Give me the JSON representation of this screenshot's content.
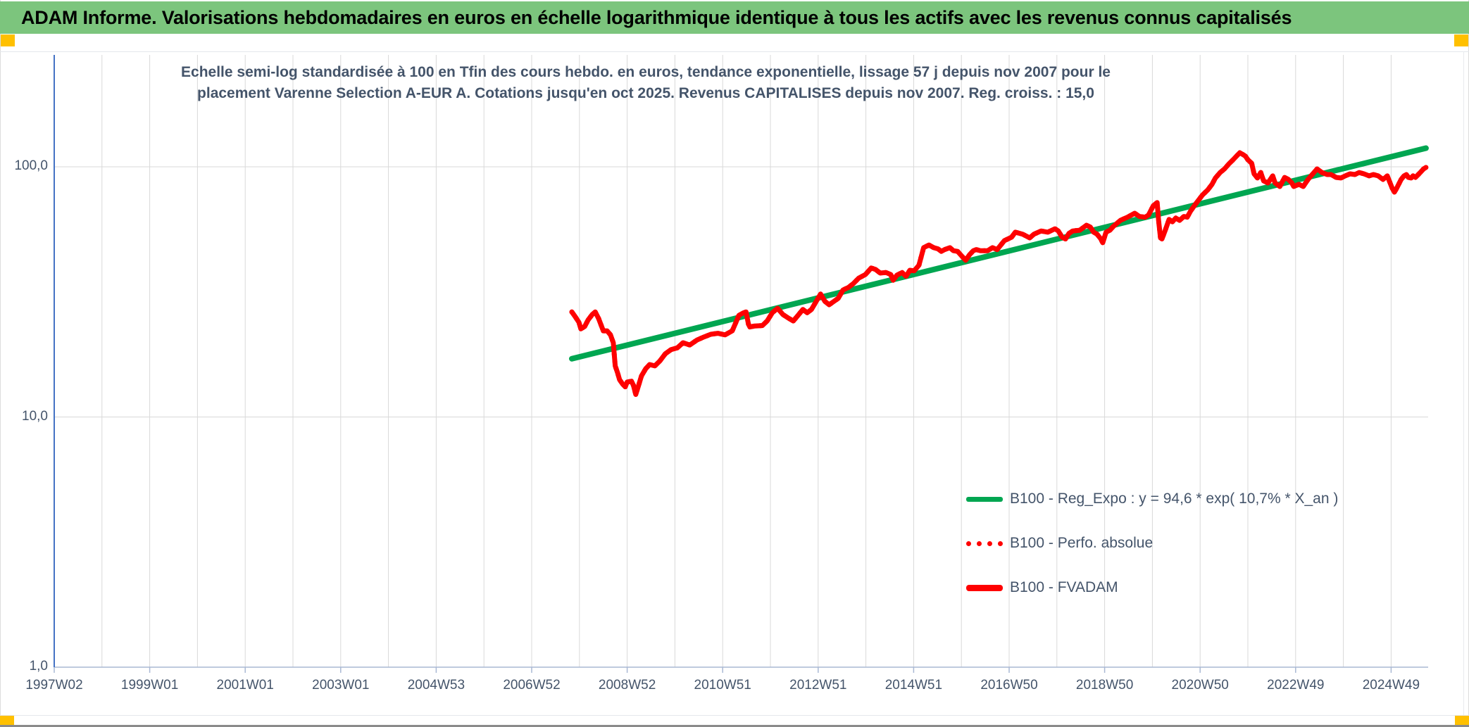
{
  "header": {
    "title": "ADAM Informe. Valorisations hebdomadaires en euros en échelle logarithmique identique à tous les actifs avec les revenus connus capitalisés",
    "bg_color": "#7cc57d",
    "accent_color": "#ffc000"
  },
  "chart": {
    "subtitle_line1": "Echelle semi-log standardisée à 100 en Tfin des cours hebdo. en euros, tendance exponentielle, lissage 57 j depuis nov 2007 pour le",
    "subtitle_line2": "placement Varenne Selection A-EUR A. Cotations jusqu'en oct 2025. Revenus CAPITALISES depuis nov 2007. Reg. croiss. : 15,0",
    "colors": {
      "gridline": "#d9d9d9",
      "y_axis": "#4472c4",
      "axis_baseline": "#a9b8d4",
      "trend_green": "#00a651",
      "series_red": "#fe0000",
      "text": "#44546A"
    },
    "y_axis": {
      "labels": [
        {
          "text": "100,0",
          "value": 100
        },
        {
          "text": "10,0",
          "value": 10
        },
        {
          "text": "1,0",
          "value": 1
        }
      ]
    },
    "x_axis": {
      "labels": [
        {
          "text": "1997W02",
          "year": 1997.03
        },
        {
          "text": "1999W01",
          "year": 1999.03
        },
        {
          "text": "2001W01",
          "year": 2001.03
        },
        {
          "text": "2003W01",
          "year": 2003.03
        },
        {
          "text": "2004W53",
          "year": 2005.03
        },
        {
          "text": "2006W52",
          "year": 2007.03
        },
        {
          "text": "2008W52",
          "year": 2009.03
        },
        {
          "text": "2010W51",
          "year": 2011.03
        },
        {
          "text": "2012W51",
          "year": 2013.03
        },
        {
          "text": "2014W51",
          "year": 2015.03
        },
        {
          "text": "2016W50",
          "year": 2017.03
        },
        {
          "text": "2018W50",
          "year": 2019.03
        },
        {
          "text": "2020W50",
          "year": 2021.03
        },
        {
          "text": "2022W49",
          "year": 2023.03
        },
        {
          "text": "2024W49",
          "year": 2025.03
        }
      ]
    },
    "legend": [
      {
        "label": "B100 - Reg_Expo : y = 94,6 * exp( 10,7% *  X_an )",
        "color": "#00a651",
        "style": "solid"
      },
      {
        "label": "B100 - Perfo. absolue",
        "color": "#fe0000",
        "style": "dotted"
      },
      {
        "label": "B100 - FVADAM",
        "color": "#fe0000",
        "style": "thick"
      }
    ]
  },
  "chart_data": {
    "type": "line",
    "title": "Echelle semi-log standardisée à 100 en Tfin des cours hebdo. en euros, tendance exponentielle, lissage 57 j depuis nov 2007 pour le placement Varenne Selection A-EUR A. Cotations jusqu'en oct 2025. Revenus CAPITALISES depuis nov 2007. Reg. croiss. : 15,0",
    "y_scale": "log",
    "ylim": [
      1,
      246
    ],
    "xlim_years": [
      1997.03,
      2025.8
    ],
    "x_unit": "ISO week (yearWweek), one gridline per year, labels every 104 weeks",
    "y_tick_labels": [
      "100,0",
      "10,0",
      "1,0"
    ],
    "x_tick_labels": [
      "1997W02",
      "1999W01",
      "2001W01",
      "2003W01",
      "2004W53",
      "2006W52",
      "2008W52",
      "2010W51",
      "2012W51",
      "2014W51",
      "2016W50",
      "2018W50",
      "2020W50",
      "2022W49",
      "2024W49"
    ],
    "grid": true,
    "legend_position": "inside lower right",
    "series": [
      {
        "name": "B100 - Reg_Expo : y = 94,6 * exp( 10,7% *  X_an )",
        "color": "#00a651",
        "style": "solid",
        "width": 8,
        "points": [
          [
            2007.87,
            17.1
          ],
          [
            2025.76,
            118.7
          ]
        ]
      },
      {
        "name": "B100 - Perfo. absolue",
        "color": "#fe0000",
        "style": "dotted",
        "width": 7,
        "points_same_as": "B100 - FVADAM",
        "note": "coincident with B100 - FVADAM, hidden beneath the solid red line"
      },
      {
        "name": "B100 - FVADAM",
        "color": "#fe0000",
        "style": "solid",
        "width": 7,
        "points": [
          [
            2007.87,
            26.3
          ],
          [
            2007.94,
            25.2
          ],
          [
            2008.02,
            23.9
          ],
          [
            2008.06,
            22.5
          ],
          [
            2008.14,
            23.0
          ],
          [
            2008.21,
            24.4
          ],
          [
            2008.3,
            25.7
          ],
          [
            2008.36,
            26.3
          ],
          [
            2008.43,
            24.8
          ],
          [
            2008.53,
            22.1
          ],
          [
            2008.61,
            22.1
          ],
          [
            2008.68,
            21.3
          ],
          [
            2008.74,
            19.8
          ],
          [
            2008.78,
            16.0
          ],
          [
            2008.83,
            15.0
          ],
          [
            2008.87,
            14.1
          ],
          [
            2008.94,
            13.5
          ],
          [
            2008.99,
            13.2
          ],
          [
            2009.03,
            13.8
          ],
          [
            2009.12,
            13.9
          ],
          [
            2009.16,
            13.4
          ],
          [
            2009.21,
            12.3
          ],
          [
            2009.27,
            13.4
          ],
          [
            2009.33,
            14.6
          ],
          [
            2009.42,
            15.6
          ],
          [
            2009.5,
            16.2
          ],
          [
            2009.61,
            16.0
          ],
          [
            2009.71,
            16.7
          ],
          [
            2009.83,
            17.9
          ],
          [
            2009.95,
            18.6
          ],
          [
            2010.08,
            18.9
          ],
          [
            2010.2,
            19.8
          ],
          [
            2010.34,
            19.4
          ],
          [
            2010.49,
            20.3
          ],
          [
            2010.64,
            20.9
          ],
          [
            2010.78,
            21.4
          ],
          [
            2010.93,
            21.6
          ],
          [
            2011.08,
            21.3
          ],
          [
            2011.23,
            22.1
          ],
          [
            2011.37,
            25.5
          ],
          [
            2011.45,
            26.0
          ],
          [
            2011.52,
            26.3
          ],
          [
            2011.57,
            23.5
          ],
          [
            2011.6,
            22.9
          ],
          [
            2011.7,
            23.1
          ],
          [
            2011.86,
            23.2
          ],
          [
            2011.96,
            24.2
          ],
          [
            2012.07,
            26.1
          ],
          [
            2012.18,
            27.2
          ],
          [
            2012.29,
            25.7
          ],
          [
            2012.4,
            24.9
          ],
          [
            2012.51,
            24.2
          ],
          [
            2012.61,
            25.5
          ],
          [
            2012.71,
            26.9
          ],
          [
            2012.8,
            26.1
          ],
          [
            2012.89,
            26.9
          ],
          [
            2012.99,
            29.0
          ],
          [
            2013.08,
            31.0
          ],
          [
            2013.17,
            29.0
          ],
          [
            2013.26,
            28.1
          ],
          [
            2013.35,
            28.9
          ],
          [
            2013.45,
            29.8
          ],
          [
            2013.55,
            32.2
          ],
          [
            2013.66,
            32.9
          ],
          [
            2013.77,
            34.2
          ],
          [
            2013.88,
            35.9
          ],
          [
            2014.02,
            37.1
          ],
          [
            2014.14,
            39.4
          ],
          [
            2014.23,
            38.9
          ],
          [
            2014.33,
            37.6
          ],
          [
            2014.45,
            37.8
          ],
          [
            2014.55,
            37.1
          ],
          [
            2014.6,
            35.2
          ],
          [
            2014.68,
            36.9
          ],
          [
            2014.79,
            37.8
          ],
          [
            2014.87,
            36.5
          ],
          [
            2014.95,
            38.6
          ],
          [
            2015.04,
            38.4
          ],
          [
            2015.14,
            40.4
          ],
          [
            2015.24,
            47.5
          ],
          [
            2015.35,
            48.7
          ],
          [
            2015.45,
            47.5
          ],
          [
            2015.54,
            47.0
          ],
          [
            2015.61,
            45.9
          ],
          [
            2015.68,
            46.7
          ],
          [
            2015.79,
            47.5
          ],
          [
            2015.86,
            46.2
          ],
          [
            2015.95,
            45.9
          ],
          [
            2016.05,
            43.7
          ],
          [
            2016.12,
            42.3
          ],
          [
            2016.2,
            44.5
          ],
          [
            2016.28,
            46.2
          ],
          [
            2016.34,
            46.7
          ],
          [
            2016.43,
            46.2
          ],
          [
            2016.58,
            46.2
          ],
          [
            2016.68,
            47.5
          ],
          [
            2016.78,
            46.7
          ],
          [
            2016.93,
            50.7
          ],
          [
            2017.08,
            52.3
          ],
          [
            2017.16,
            54.8
          ],
          [
            2017.31,
            53.8
          ],
          [
            2017.46,
            52.0
          ],
          [
            2017.55,
            53.8
          ],
          [
            2017.7,
            55.4
          ],
          [
            2017.84,
            54.8
          ],
          [
            2017.99,
            56.5
          ],
          [
            2018.06,
            55.4
          ],
          [
            2018.14,
            52.3
          ],
          [
            2018.21,
            51.5
          ],
          [
            2018.28,
            54.1
          ],
          [
            2018.36,
            55.4
          ],
          [
            2018.51,
            55.8
          ],
          [
            2018.65,
            58.4
          ],
          [
            2018.73,
            57.4
          ],
          [
            2018.8,
            54.8
          ],
          [
            2018.87,
            53.8
          ],
          [
            2018.95,
            51.5
          ],
          [
            2018.99,
            49.7
          ],
          [
            2019.06,
            54.8
          ],
          [
            2019.14,
            55.8
          ],
          [
            2019.21,
            57.7
          ],
          [
            2019.36,
            61.1
          ],
          [
            2019.51,
            62.9
          ],
          [
            2019.66,
            65.2
          ],
          [
            2019.76,
            63.3
          ],
          [
            2019.88,
            62.9
          ],
          [
            2019.95,
            64.2
          ],
          [
            2020.05,
            70.0
          ],
          [
            2020.13,
            71.9
          ],
          [
            2020.16,
            61.1
          ],
          [
            2020.2,
            52.0
          ],
          [
            2020.23,
            51.5
          ],
          [
            2020.3,
            55.8
          ],
          [
            2020.38,
            61.6
          ],
          [
            2020.45,
            60.3
          ],
          [
            2020.52,
            62.4
          ],
          [
            2020.6,
            61.1
          ],
          [
            2020.69,
            63.3
          ],
          [
            2020.76,
            62.9
          ],
          [
            2020.83,
            66.5
          ],
          [
            2020.91,
            70.0
          ],
          [
            2020.98,
            72.9
          ],
          [
            2021.08,
            77.2
          ],
          [
            2021.19,
            80.8
          ],
          [
            2021.28,
            85.1
          ],
          [
            2021.35,
            90.2
          ],
          [
            2021.45,
            94.9
          ],
          [
            2021.54,
            98.1
          ],
          [
            2021.63,
            102.6
          ],
          [
            2021.72,
            106.7
          ],
          [
            2021.79,
            110.2
          ],
          [
            2021.86,
            113.8
          ],
          [
            2021.94,
            111.6
          ],
          [
            2021.98,
            110.2
          ],
          [
            2022.03,
            106.7
          ],
          [
            2022.11,
            103.3
          ],
          [
            2022.16,
            93.7
          ],
          [
            2022.23,
            90.2
          ],
          [
            2022.3,
            94.9
          ],
          [
            2022.36,
            87.8
          ],
          [
            2022.45,
            86.2
          ],
          [
            2022.55,
            92.0
          ],
          [
            2022.6,
            86.2
          ],
          [
            2022.7,
            83.4
          ],
          [
            2022.8,
            90.7
          ],
          [
            2022.88,
            89.0
          ],
          [
            2022.95,
            86.2
          ],
          [
            2022.99,
            83.4
          ],
          [
            2023.1,
            85.1
          ],
          [
            2023.19,
            83.4
          ],
          [
            2023.29,
            89.0
          ],
          [
            2023.39,
            93.7
          ],
          [
            2023.48,
            98.1
          ],
          [
            2023.58,
            94.9
          ],
          [
            2023.69,
            93.1
          ],
          [
            2023.77,
            93.1
          ],
          [
            2023.88,
            90.7
          ],
          [
            2023.98,
            90.2
          ],
          [
            2024.07,
            92.0
          ],
          [
            2024.17,
            93.7
          ],
          [
            2024.27,
            93.1
          ],
          [
            2024.36,
            94.9
          ],
          [
            2024.46,
            93.7
          ],
          [
            2024.57,
            92.0
          ],
          [
            2024.66,
            93.1
          ],
          [
            2024.76,
            92.0
          ],
          [
            2024.86,
            89.0
          ],
          [
            2024.95,
            92.0
          ],
          [
            2025.05,
            82.3
          ],
          [
            2025.1,
            79.2
          ],
          [
            2025.15,
            82.3
          ],
          [
            2025.24,
            89.0
          ],
          [
            2025.3,
            92.0
          ],
          [
            2025.35,
            93.1
          ],
          [
            2025.39,
            90.7
          ],
          [
            2025.45,
            90.2
          ],
          [
            2025.49,
            92.0
          ],
          [
            2025.54,
            90.7
          ],
          [
            2025.6,
            93.1
          ],
          [
            2025.64,
            94.9
          ],
          [
            2025.71,
            98.1
          ],
          [
            2025.76,
            99.4
          ]
        ]
      }
    ]
  }
}
